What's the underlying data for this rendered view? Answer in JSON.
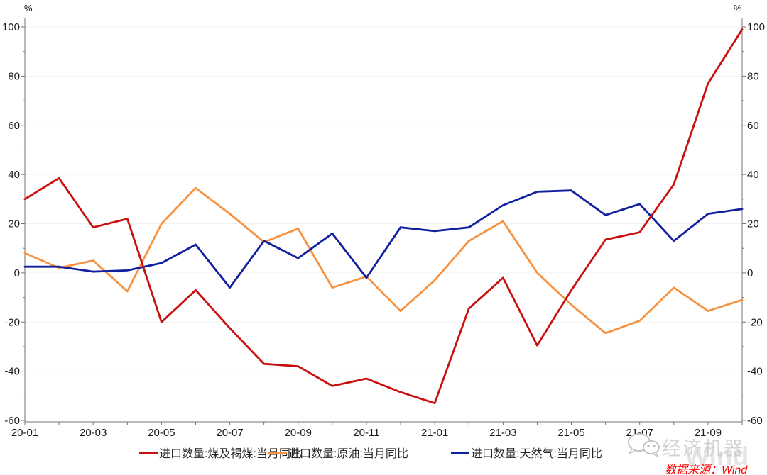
{
  "axes": {
    "unit": "%",
    "y_ticks": [
      100,
      80,
      60,
      40,
      20,
      0,
      -20,
      -40,
      -60
    ],
    "ylim": [
      -60,
      100
    ],
    "x_tick_labels": [
      "20-01",
      "20-03",
      "20-05",
      "20-07",
      "20-09",
      "20-11",
      "21-01",
      "21-03",
      "21-05",
      "21-07",
      "21-09"
    ]
  },
  "chart_data": {
    "type": "line",
    "title": "",
    "xlabel": "",
    "ylabel": "%",
    "ylim": [
      -60,
      100
    ],
    "grid": true,
    "legend_position": "bottom",
    "x": [
      "20-01",
      "20-02",
      "20-03",
      "20-04",
      "20-05",
      "20-06",
      "20-07",
      "20-08",
      "20-09",
      "20-10",
      "20-11",
      "20-12",
      "21-01",
      "21-02",
      "21-03",
      "21-04",
      "21-05",
      "21-06",
      "21-07",
      "21-08",
      "21-09",
      "21-10"
    ],
    "series": [
      {
        "name": "进口数量:煤及褐煤:当月同比",
        "color": "#C8100F",
        "values": [
          30,
          38.5,
          18.5,
          22,
          -20,
          -7,
          -22.5,
          -37,
          -38,
          -46,
          -43,
          -48.5,
          -53,
          -14.5,
          -2,
          -29.5,
          -7,
          13.5,
          16.5,
          36,
          77,
          99
        ]
      },
      {
        "name": "进口数量:原油:当月同比",
        "color": "#F79240",
        "values": [
          8,
          2,
          5,
          -7.5,
          20,
          34.5,
          24,
          12.5,
          18,
          -6,
          -1.5,
          -15.5,
          -3,
          13,
          21,
          0,
          -13,
          -24.5,
          -19.5,
          -6,
          -15.5,
          -11
        ]
      },
      {
        "name": "进口数量:天然气:当月同比",
        "color": "#101F9E",
        "values": [
          2.5,
          2.5,
          0.5,
          1,
          4,
          11.5,
          -6,
          13,
          6,
          16,
          -2,
          18.5,
          17,
          18.5,
          27.5,
          33,
          33.5,
          23.5,
          28,
          13,
          24,
          26
        ]
      }
    ]
  },
  "style": {
    "grid_color": "#F2F2F2",
    "axis_color": "#737373",
    "tick_label_color": "#1a1a1a"
  },
  "watermark": {
    "brand": "经济机器",
    "wind": "Wind"
  },
  "source": {
    "text": "数据来源：Wind"
  }
}
